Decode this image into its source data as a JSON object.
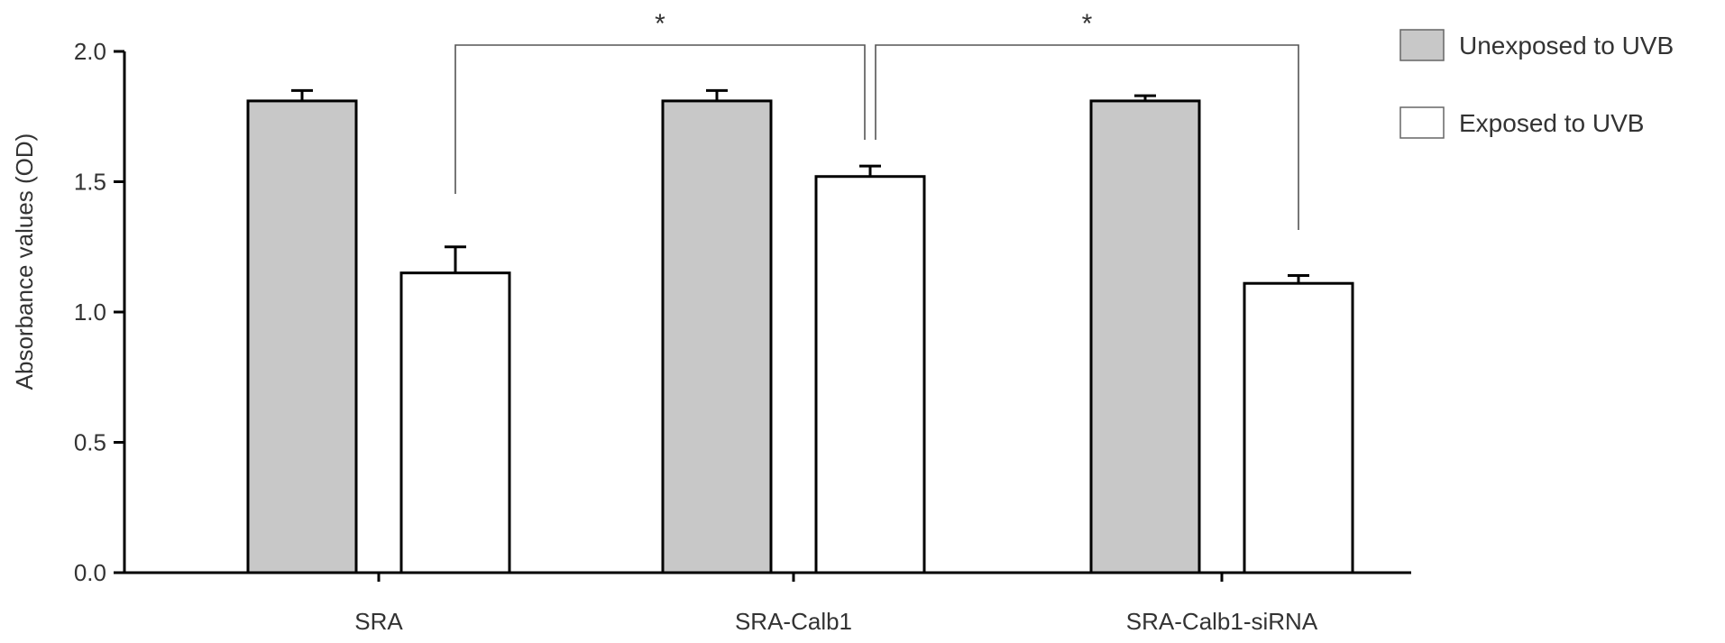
{
  "chart_data": {
    "type": "bar",
    "title": "",
    "xlabel": "",
    "ylabel": "Absorbance values (OD)",
    "ylim": [
      0,
      2.0
    ],
    "yticks": [
      {
        "value": 0.0,
        "label": "0.0"
      },
      {
        "value": 0.5,
        "label": "0.5"
      },
      {
        "value": 1.0,
        "label": "1.0"
      },
      {
        "value": 1.5,
        "label": "1.5"
      },
      {
        "value": 2.0,
        "label": "2.0"
      }
    ],
    "categories": [
      "SRA",
      "SRA-Calb1",
      "SRA-Calb1-siRNA"
    ],
    "series": [
      {
        "name": "Unexposed to UVB",
        "color": "#c8c8c8",
        "values": [
          1.81,
          1.81,
          1.81
        ],
        "errors": [
          0.04,
          0.04,
          0.02
        ]
      },
      {
        "name": "Exposed to UVB",
        "color": "#ffffff",
        "values": [
          1.15,
          1.52,
          1.11
        ],
        "errors": [
          0.1,
          0.04,
          0.03
        ]
      }
    ],
    "legend": {
      "position": "top-right"
    },
    "grid": false,
    "significance": [
      {
        "from": {
          "category": 0,
          "series": 1
        },
        "to": {
          "category": 1,
          "series": 1
        },
        "label": "*"
      },
      {
        "from": {
          "category": 1,
          "series": 1
        },
        "to": {
          "category": 2,
          "series": 1
        },
        "label": "*"
      }
    ]
  }
}
